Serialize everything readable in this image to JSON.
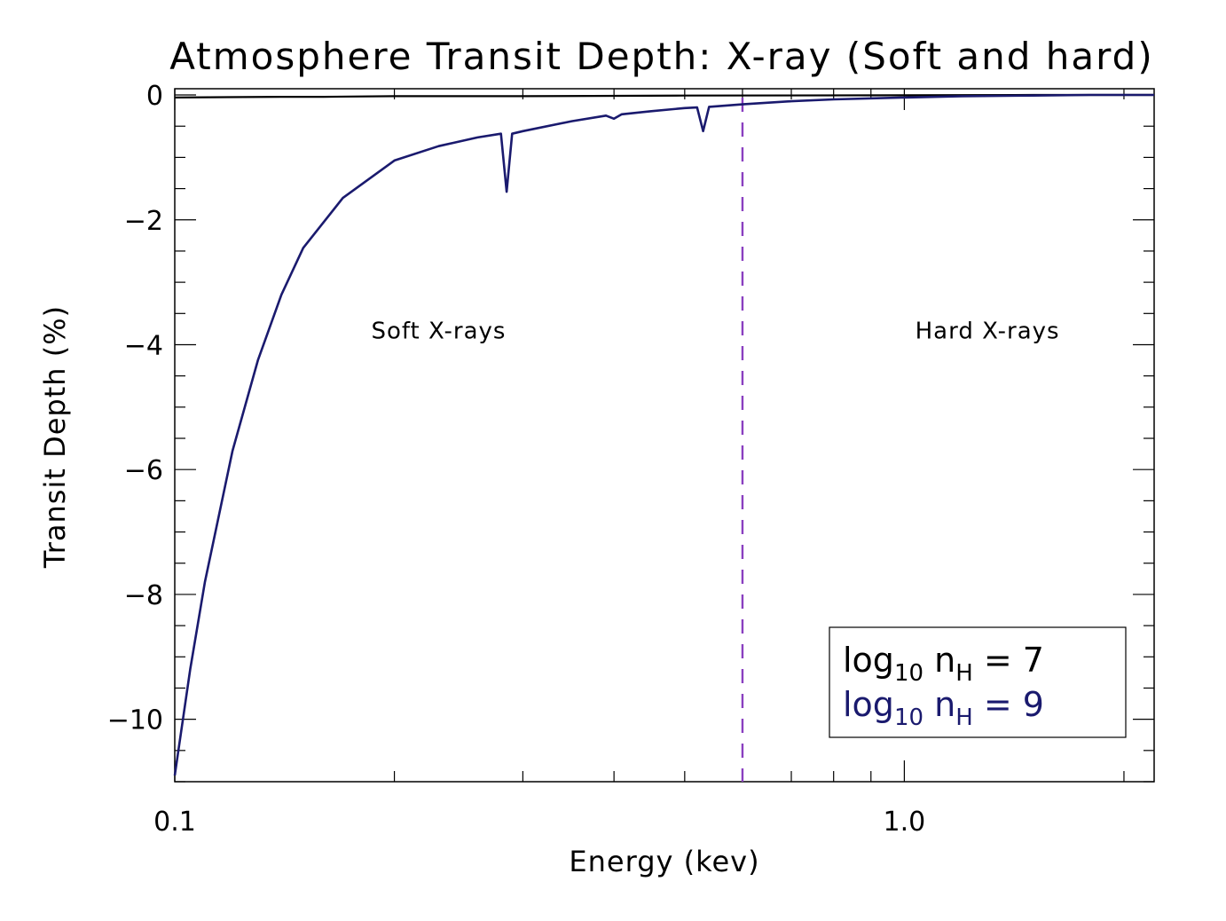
{
  "chart_data": {
    "type": "line",
    "title": "Atmosphere Transit Depth: X-ray (Soft and hard)",
    "xlabel": "Energy (kev)",
    "ylabel": "Transit Depth (%)",
    "xscale": "log",
    "xlim": [
      0.1,
      2.2
    ],
    "ylim": [
      -11,
      0.1
    ],
    "x_tick_labels": [
      {
        "value": 0.1,
        "label": "0.1"
      },
      {
        "value": 1.0,
        "label": "1.0"
      }
    ],
    "y_tick_labels": [
      {
        "value": 0,
        "label": "0"
      },
      {
        "value": -2,
        "label": "−2"
      },
      {
        "value": -4,
        "label": "−4"
      },
      {
        "value": -6,
        "label": "−6"
      },
      {
        "value": -8,
        "label": "−8"
      },
      {
        "value": -10,
        "label": "−10"
      }
    ],
    "series": [
      {
        "name": "log10 nH = 7",
        "color": "#000000",
        "x": [
          0.1,
          0.14,
          0.15,
          0.16,
          0.2,
          0.3,
          0.5,
          1.0,
          1.5,
          2.2
        ],
        "y": [
          -0.04,
          -0.03,
          -0.03,
          -0.03,
          -0.02,
          -0.02,
          -0.01,
          -0.005,
          0.0,
          0.0
        ]
      },
      {
        "name": "log10 nH = 9",
        "color": "#1a1a6e",
        "x": [
          0.1,
          0.105,
          0.11,
          0.12,
          0.13,
          0.14,
          0.15,
          0.17,
          0.2,
          0.23,
          0.26,
          0.28,
          0.285,
          0.29,
          0.3,
          0.35,
          0.39,
          0.4,
          0.41,
          0.45,
          0.5,
          0.52,
          0.53,
          0.54,
          0.6,
          0.7,
          0.8,
          1.0,
          1.2,
          1.5,
          1.8,
          2.2
        ],
        "y": [
          -10.9,
          -9.2,
          -7.8,
          -5.7,
          -4.25,
          -3.2,
          -2.45,
          -1.65,
          -1.05,
          -0.82,
          -0.68,
          -0.62,
          -1.55,
          -0.62,
          -0.58,
          -0.42,
          -0.33,
          -0.38,
          -0.31,
          -0.26,
          -0.21,
          -0.2,
          -0.58,
          -0.19,
          -0.15,
          -0.1,
          -0.07,
          -0.04,
          -0.02,
          -0.01,
          0.0,
          0.0
        ]
      }
    ],
    "vertical_line": {
      "x": 0.6,
      "style": "dashed",
      "color": "#8a3fc0"
    },
    "annotations": [
      {
        "text": "Soft X-rays",
        "x": 0.23,
        "y": -3.9
      },
      {
        "text": "Hard X-rays",
        "x": 1.3,
        "y": -3.9
      }
    ],
    "legend": {
      "placement": "bottom-right",
      "entries": [
        {
          "prefix": "log",
          "sub1": "10",
          "mid": " n",
          "sub2": "H",
          "suffix": " = 7",
          "color": "#000000"
        },
        {
          "prefix": "log",
          "sub1": "10",
          "mid": " n",
          "sub2": "H",
          "suffix": " = 9",
          "color": "#1a1a6e"
        }
      ]
    }
  }
}
